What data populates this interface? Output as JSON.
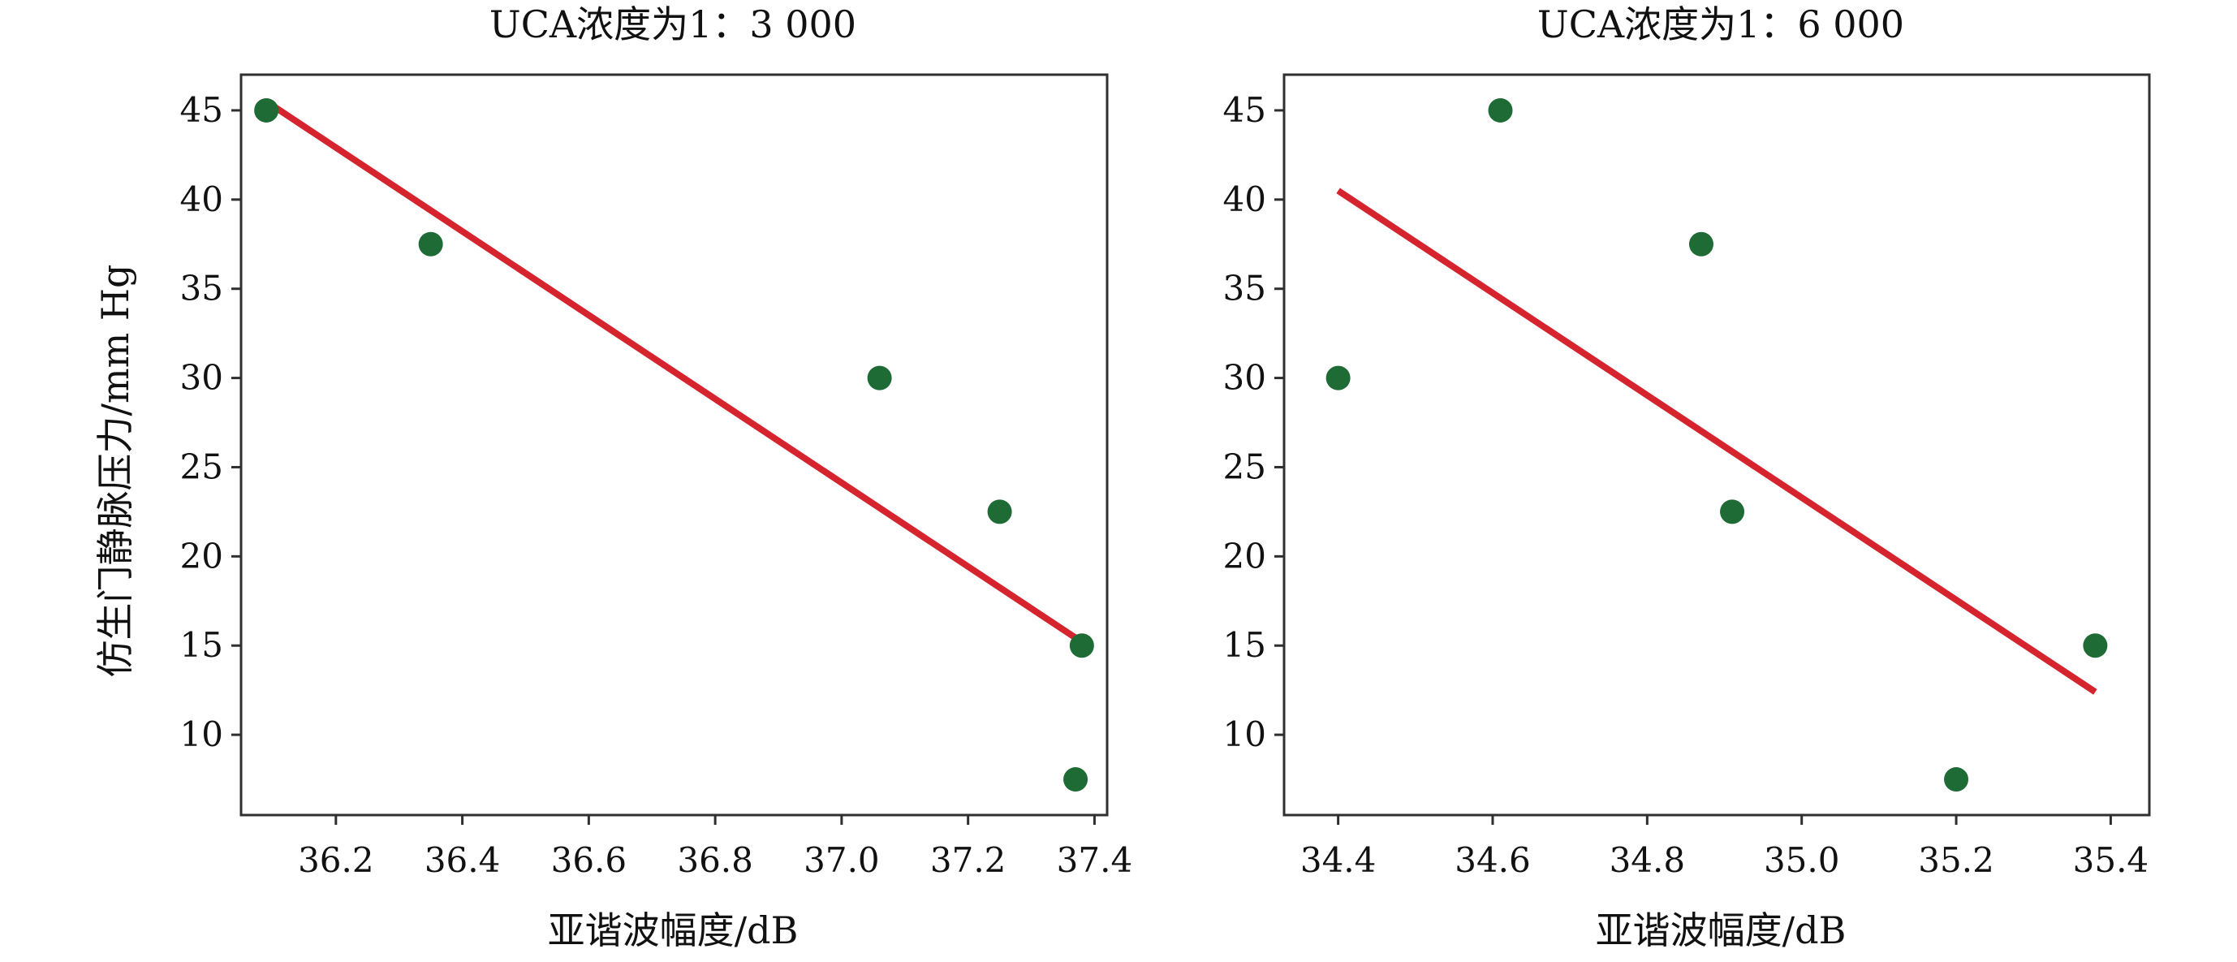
{
  "figure": {
    "ylabel_shared": "仿生门静脉压力/mm Hg"
  },
  "chart_data": [
    {
      "type": "scatter",
      "title": "UCA浓度为1：3 000",
      "xlabel": "亚谐波幅度/dB",
      "ylabel": "仿生门静脉压力/mm Hg",
      "xlim": [
        36.05,
        37.42
      ],
      "ylim": [
        5.5,
        47
      ],
      "xticks": [
        36.2,
        36.4,
        36.6,
        36.8,
        37.0,
        37.2,
        37.4
      ],
      "xtick_labels": [
        "36.2",
        "36.4",
        "36.6",
        "36.8",
        "37.0",
        "37.2",
        "37.4"
      ],
      "yticks": [
        10,
        15,
        20,
        25,
        30,
        35,
        40,
        45
      ],
      "ytick_labels": [
        "10",
        "15",
        "20",
        "25",
        "30",
        "35",
        "40",
        "45"
      ],
      "points": [
        {
          "x": 36.09,
          "y": 45
        },
        {
          "x": 36.35,
          "y": 37.5
        },
        {
          "x": 37.06,
          "y": 30
        },
        {
          "x": 37.25,
          "y": 22.5
        },
        {
          "x": 37.38,
          "y": 15
        },
        {
          "x": 37.37,
          "y": 7.5
        }
      ],
      "fit_line": {
        "x": [
          36.09,
          37.38
        ],
        "y": [
          45.5,
          15.2
        ]
      },
      "point_color": "#1e6b35",
      "line_color": "#d6242f",
      "grid": false
    },
    {
      "type": "scatter",
      "title": "UCA浓度为1：6 000",
      "xlabel": "亚谐波幅度/dB",
      "ylabel": "",
      "xlim": [
        34.33,
        35.45
      ],
      "ylim": [
        5.5,
        47
      ],
      "xticks": [
        34.4,
        34.6,
        34.8,
        35.0,
        35.2,
        35.4
      ],
      "xtick_labels": [
        "34.4",
        "34.6",
        "34.8",
        "35.0",
        "35.2",
        "35.4"
      ],
      "yticks": [
        10,
        15,
        20,
        25,
        30,
        35,
        40,
        45
      ],
      "ytick_labels": [
        "10",
        "15",
        "20",
        "25",
        "30",
        "35",
        "40",
        "45"
      ],
      "points": [
        {
          "x": 34.4,
          "y": 30
        },
        {
          "x": 34.61,
          "y": 45
        },
        {
          "x": 34.87,
          "y": 37.5
        },
        {
          "x": 34.91,
          "y": 22.5
        },
        {
          "x": 35.2,
          "y": 7.5
        },
        {
          "x": 35.38,
          "y": 15
        }
      ],
      "fit_line": {
        "x": [
          34.4,
          35.38
        ],
        "y": [
          40.5,
          12.4
        ]
      },
      "point_color": "#1e6b35",
      "line_color": "#d6242f",
      "grid": false
    }
  ]
}
